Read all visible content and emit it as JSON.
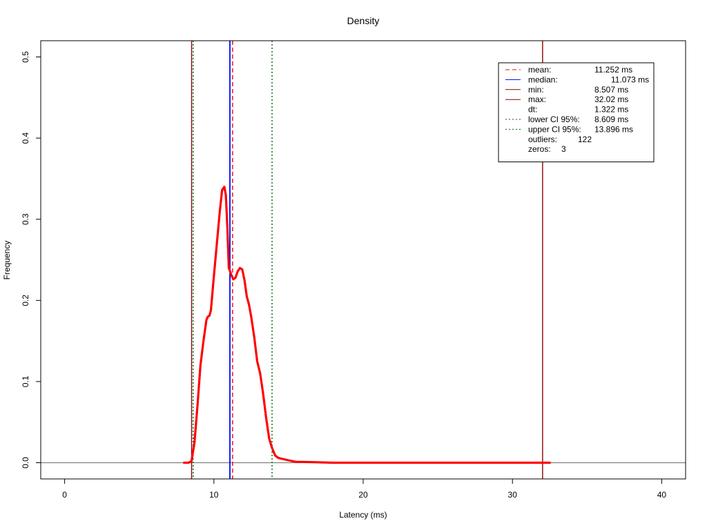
{
  "chart_data": {
    "type": "line",
    "title": "Density",
    "xlabel": "Latency (ms)",
    "ylabel": "Frequency",
    "xlim": [
      -1.6,
      41.6
    ],
    "ylim": [
      -0.02,
      0.52
    ],
    "xticks": [
      0,
      10,
      20,
      30,
      40
    ],
    "xtick_labels": [
      "0",
      "10",
      "20",
      "30",
      "40"
    ],
    "yticks": [
      0.0,
      0.1,
      0.2,
      0.3,
      0.4,
      0.5
    ],
    "ytick_labels": [
      "0.0",
      "0.1",
      "0.2",
      "0.3",
      "0.4",
      "0.5"
    ],
    "grid": false,
    "legend_position": "top-right",
    "colors": {
      "density": "#ff0000",
      "mean": "#ff0000",
      "median": "#0000ff",
      "minmax": "#8b0000",
      "ci": "#006400",
      "baseline": "#808080"
    },
    "series": [
      {
        "x": [
          8.0,
          8.3,
          8.5,
          8.7,
          8.9,
          9.1,
          9.3,
          9.5,
          9.6,
          9.7,
          9.8,
          10.0,
          10.2,
          10.4,
          10.55,
          10.7,
          10.8,
          10.9,
          11.0,
          11.1,
          11.2,
          11.3,
          11.45,
          11.6,
          11.75,
          11.9,
          12.05,
          12.2,
          12.35,
          12.5,
          12.7,
          12.9,
          13.1,
          13.3,
          13.5,
          13.7,
          13.9,
          14.1,
          14.3,
          14.5,
          15.0,
          15.5,
          16.0,
          18.0,
          22.0,
          26.0,
          30.0,
          32.0,
          32.5
        ],
        "values": [
          0.0,
          0.0,
          0.002,
          0.025,
          0.07,
          0.12,
          0.15,
          0.176,
          0.18,
          0.181,
          0.188,
          0.23,
          0.27,
          0.31,
          0.336,
          0.34,
          0.33,
          0.29,
          0.24,
          0.235,
          0.23,
          0.226,
          0.228,
          0.236,
          0.24,
          0.238,
          0.225,
          0.205,
          0.195,
          0.18,
          0.155,
          0.125,
          0.11,
          0.085,
          0.055,
          0.03,
          0.018,
          0.009,
          0.006,
          0.005,
          0.003,
          0.001,
          0.001,
          0.0,
          0.0,
          0.0,
          0.0,
          0.0,
          0.0
        ]
      }
    ],
    "vlines": [
      {
        "name": "mean",
        "x": 11.252,
        "style": "dashed"
      },
      {
        "name": "median",
        "x": 11.073,
        "style": "solid"
      },
      {
        "name": "min",
        "x": 8.507,
        "style": "solid"
      },
      {
        "name": "max",
        "x": 32.02,
        "style": "solid"
      },
      {
        "name": "lower-ci",
        "x": 8.609,
        "style": "dotted"
      },
      {
        "name": "upper-ci",
        "x": 13.896,
        "style": "dotted"
      }
    ],
    "legend": [
      {
        "label": "mean:",
        "value": "11.252 ms",
        "line": "dashed",
        "color": "#ff0000"
      },
      {
        "label": "median:",
        "value": "11.073 ms",
        "line": "solid",
        "color": "#0000ff"
      },
      {
        "label": "min:",
        "value": "8.507 ms",
        "line": "solid",
        "color": "#8b0000"
      },
      {
        "label": "max:",
        "value": "32.02 ms",
        "line": "solid",
        "color": "#8b0000"
      },
      {
        "label": "dt:",
        "value": "1.322 ms",
        "line": "none",
        "color": ""
      },
      {
        "label": "lower CI 95%:",
        "value": "8.609 ms",
        "line": "dotted",
        "color": "#006400"
      },
      {
        "label": "upper CI 95%:",
        "value": "13.896 ms",
        "line": "dotted",
        "color": "#006400"
      },
      {
        "label": "outliers:",
        "value": "122",
        "line": "none",
        "color": ""
      },
      {
        "label": "zeros:",
        "value": "3",
        "line": "none",
        "color": ""
      }
    ]
  }
}
